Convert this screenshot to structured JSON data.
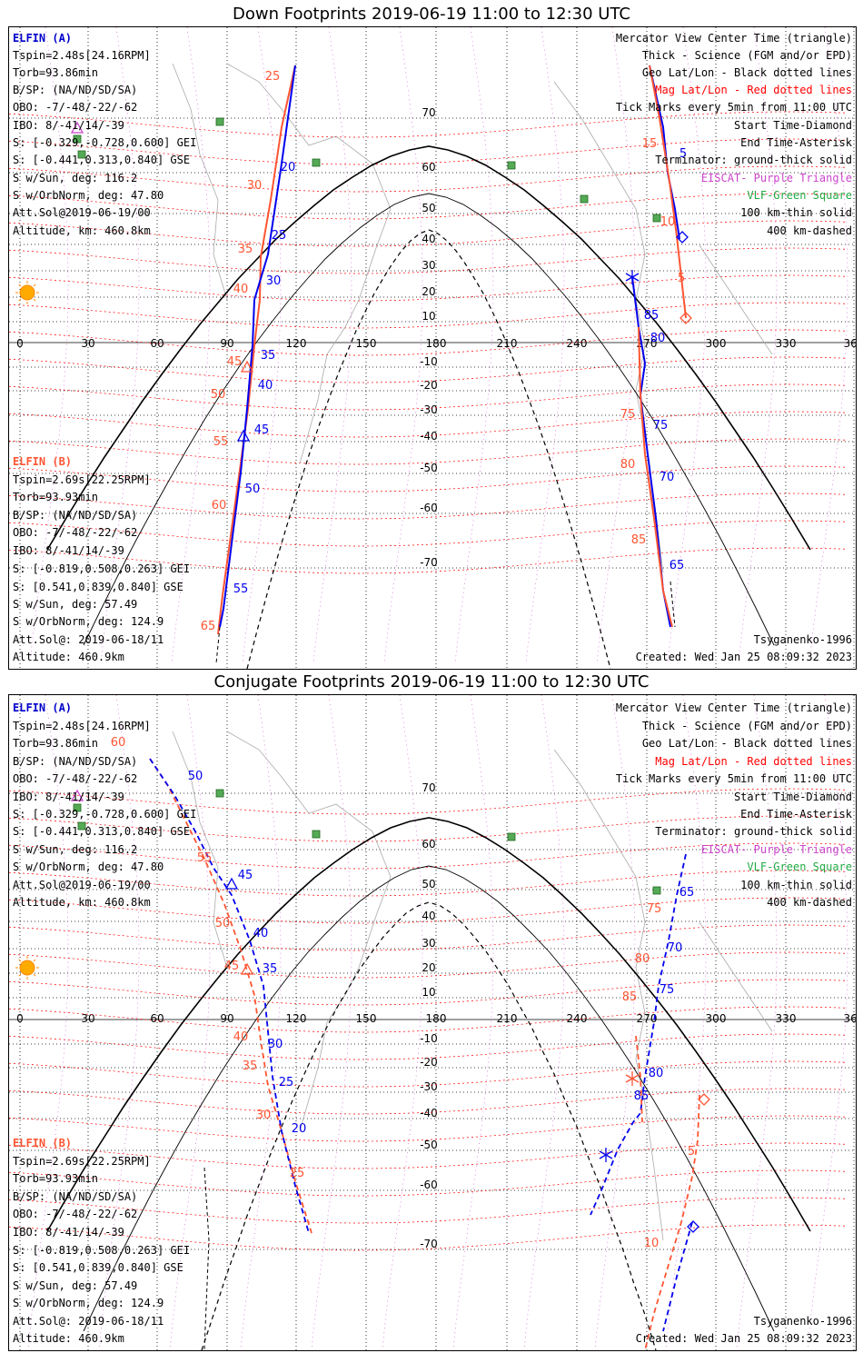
{
  "colors": {
    "elfin_a": "#0000ee",
    "elfin_b": "#ff5533",
    "geo_grid": "#000000",
    "mag_grid": "#ff0000",
    "elfin_a_header": "#0000cc",
    "terminator": "#000000",
    "eiscat": "#cc44cc",
    "vlf": "#22aa44",
    "sun": "#ffaa00",
    "coast": "#aaaaaa"
  },
  "panels": [
    {
      "title": "Down Footprints 2019-06-19 11:00 to 12:30 UTC",
      "elfin_a": {
        "header": "ELFIN (A)",
        "lines": [
          "Tspin=2.48s[24.16RPM]",
          "Torb=93.86min",
          "B/SP: (NA/ND/SD/SA)",
          "OBO: -7/-48/-22/-62",
          "IBO: 8/-41/14/-39",
          "S: [-0.329,-0.728,0.600] GEI",
          "S: [-0.441,0.313,0.840] GSE",
          "S w/Sun, deg: 116.2",
          "S w/OrbNorm, deg: 47.80",
          "Att.Sol@2019-06-19/00",
          "Altitude, km: 460.8km"
        ]
      },
      "elfin_b": {
        "header": "ELFIN (B)",
        "lines": [
          "Tspin=2.69s[22.25RPM]",
          "Torb=93.93min",
          "B/SP: (NA/ND/SD/SA)",
          "OBO: -7/-48/-22/-62",
          "IBO: 8/-41/14/-39",
          "S: [-0.819,0.508,0.263] GEI",
          "S: [0.541,0.839,0.840] GSE",
          "S w/Sun, deg: 57.49",
          "S w/OrbNorm, deg: 124.9",
          "Att.Sol@: 2019-06-18/11",
          "Altitude: 460.9km"
        ]
      },
      "legend": [
        "Mercator View Center Time (triangle)",
        "Thick - Science (FGM and/or EPD)",
        "Geo Lat/Lon - Black dotted lines",
        "Mag Lat/Lon - Red dotted lines",
        "Tick Marks every 5min from 11:00 UTC",
        "Start Time-Diamond",
        "End Time-Asterisk",
        "Terminator: ground-thick solid",
        "EISCAT- Purple Triangle",
        "VLF-Green Square",
        "100 km-thin solid",
        "400 km-dashed"
      ],
      "model": "Tsyganenko-1996",
      "created": "Created: Wed Jan 25 08:09:32 2023"
    },
    {
      "title": "Conjugate Footprints 2019-06-19 11:00 to 12:30 UTC",
      "elfin_a": {
        "header": "ELFIN (A)",
        "lines": [
          "Tspin=2.48s[24.16RPM]",
          "Torb=93.86min",
          "B/SP: (NA/ND/SD/SA)",
          "OBO: -7/-48/-22/-62",
          "IBO: 8/-41/14/-39",
          "S: [-0.329,-0.728,0.600] GEI",
          "S: [-0.441,0.313,0.840] GSE",
          "S w/Sun, deg: 116.2",
          "S w/OrbNorm, deg: 47.80",
          "Att.Sol@2019-06-19/00",
          "Altitude, km: 460.8km"
        ]
      },
      "elfin_b": {
        "header": "ELFIN (B)",
        "lines": [
          "Tspin=2.69s[22.25RPM]",
          "Torb=93.93min",
          "B/SP: (NA/ND/SD/SA)",
          "OBO: -7/-48/-22/-62",
          "IBO: 8/-41/14/-39",
          "S: [-0.819,0.508,0.263] GEI",
          "S: [0.541,0.839,0.840] GSE",
          "S w/Sun, deg: 57.49",
          "S w/OrbNorm, deg: 124.9",
          "Att.Sol@: 2019-06-18/11",
          "Altitude: 460.9km"
        ]
      },
      "legend": [
        "Mercator View Center Time (triangle)",
        "Thick - Science (FGM and/or EPD)",
        "Geo Lat/Lon - Black dotted lines",
        "Mag Lat/Lon - Red dotted lines",
        "Tick Marks every 5min from 11:00 UTC",
        "Start Time-Diamond",
        "End Time-Asterisk",
        "Terminator: ground-thick solid",
        "EISCAT- Purple Triangle",
        "VLF-Green Square",
        "100 km-thin solid",
        "400 km-dashed"
      ],
      "model": "Tsyganenko-1996",
      "created": "Created: Wed Jan 25 08:09:32 2023"
    }
  ],
  "map": {
    "lon_labels": [
      "0",
      "30",
      "60",
      "90",
      "120",
      "150",
      "180",
      "210",
      "240",
      "270",
      "300",
      "330",
      "360"
    ],
    "lat_labels": [
      "70",
      "60",
      "50",
      "40",
      "30",
      "20",
      "10",
      "-10",
      "-20",
      "-30",
      "-40",
      "-50",
      "-60",
      "-70"
    ],
    "panel1_ticks_a": [
      "5",
      "20",
      "25",
      "30",
      "35",
      "40",
      "45",
      "50",
      "55",
      "65",
      "70",
      "75",
      "80",
      "85"
    ],
    "panel1_ticks_b": [
      "25",
      "30",
      "35",
      "40",
      "45",
      "50",
      "55",
      "60",
      "65",
      "5",
      "10",
      "15",
      "75",
      "80",
      "85"
    ],
    "panel2_ticks_a": [
      "50",
      "45",
      "40",
      "35",
      "30",
      "25",
      "20",
      "65",
      "70",
      "75",
      "80",
      "85"
    ],
    "panel2_ticks_b": [
      "60",
      "55",
      "50",
      "45",
      "40",
      "35",
      "30",
      "25",
      "75",
      "80",
      "85",
      "5",
      "10"
    ]
  }
}
